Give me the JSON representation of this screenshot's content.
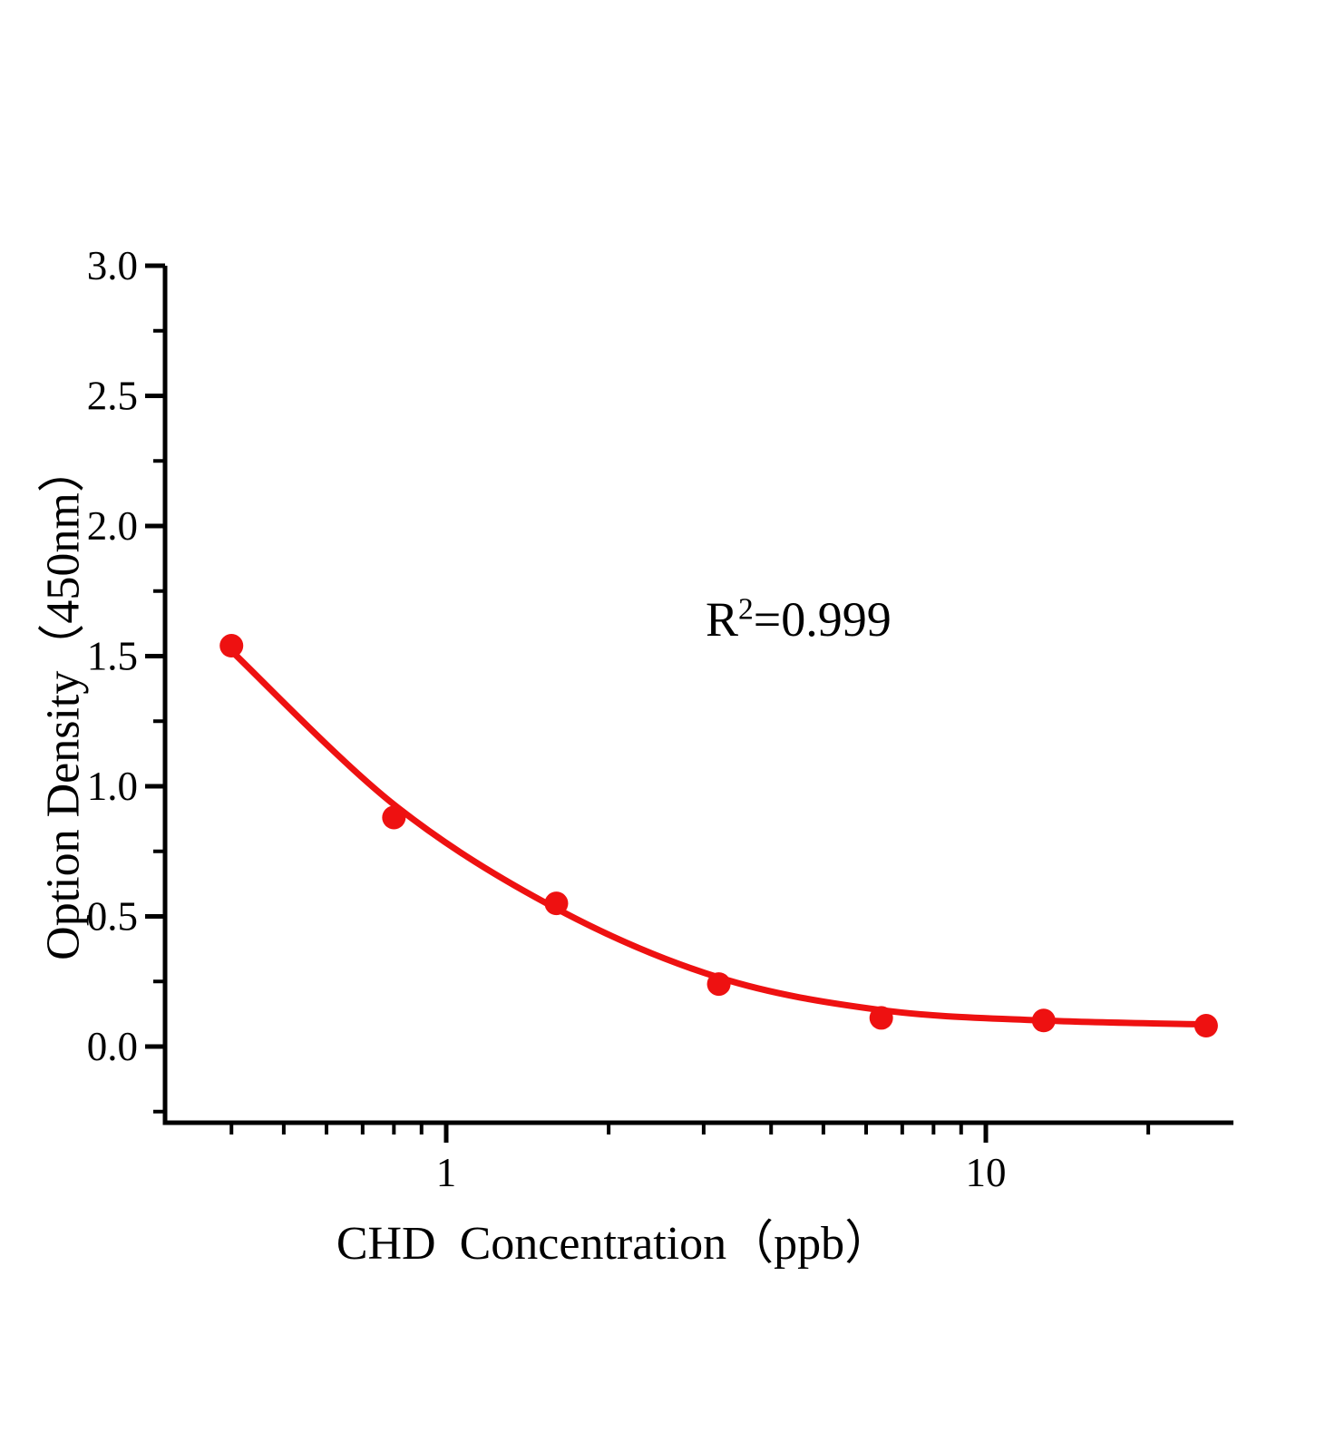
{
  "figure": {
    "background": "#ffffff"
  },
  "chart_data": {
    "type": "scatter",
    "title": "",
    "xlabel": "CHD  Concentration（ppb）",
    "ylabel": "Option Density（450nm）",
    "x_scale": "log10",
    "xlim": [
      0.3,
      28.8
    ],
    "ylim": [
      -0.3,
      3.0
    ],
    "grid": false,
    "legend": "none",
    "x_major_ticks": {
      "values": [
        1,
        10
      ],
      "labels": [
        "1",
        "10"
      ]
    },
    "x_minor_ticks": [
      0.4,
      0.5,
      0.6,
      0.7,
      0.8,
      0.9,
      2,
      3,
      4,
      5,
      6,
      7,
      8,
      9,
      20
    ],
    "y_major_ticks": {
      "values": [
        0,
        0.5,
        1,
        1.5,
        2,
        2.5,
        3
      ],
      "labels": [
        "0.0",
        "0.5",
        "1.0",
        "1.5",
        "2.0",
        "2.5",
        "3.0"
      ]
    },
    "y_minor_ticks": [
      -0.25,
      0.25,
      0.75,
      1.25,
      1.75,
      2.25,
      2.75
    ],
    "series": [
      {
        "name": "standard-points",
        "type": "scatter",
        "marker": "filled-circle",
        "color": "#ee1111",
        "x": [
          0.4,
          0.8,
          1.6,
          3.2,
          6.4,
          12.8,
          25.6
        ],
        "y": [
          1.54,
          0.88,
          0.55,
          0.24,
          0.11,
          0.1,
          0.08
        ]
      },
      {
        "name": "fit-curve",
        "type": "line",
        "color": "#ee1111",
        "x": [
          0.4,
          0.8,
          1.6,
          3.2,
          6.4,
          12.8,
          25.6
        ],
        "y": [
          1.52,
          0.93,
          0.53,
          0.265,
          0.14,
          0.1,
          0.085
        ]
      }
    ],
    "annotation": {
      "text": "R²=0.999",
      "base": "R",
      "sup": "2",
      "rest": "=0.999"
    },
    "colors": {
      "accent": "#ee1111",
      "axis": "#000000",
      "text": "#000000",
      "background": "#ffffff"
    }
  }
}
